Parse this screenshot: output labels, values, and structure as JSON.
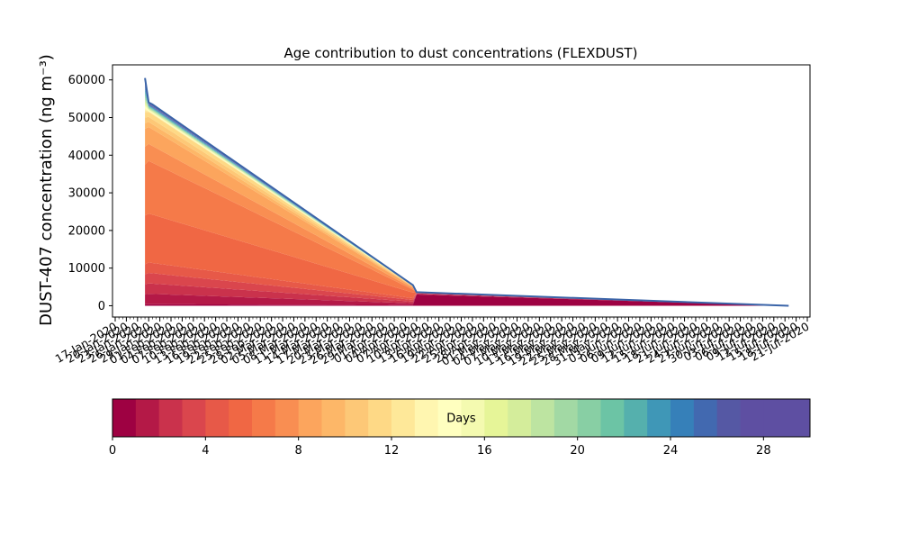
{
  "chart_data": [
    {
      "type": "area",
      "title": "Age contribution to dust concentrations (FLEXDUST)",
      "ylabel": "DUST-407 concentration (ng m⁻³)",
      "xlabel": "",
      "ylim": [
        -3000,
        64000
      ],
      "yticks": [
        0,
        10000,
        20000,
        30000,
        40000,
        50000,
        60000
      ],
      "ytick_labels": [
        "0",
        "10000",
        "20000",
        "30000",
        "40000",
        "50000",
        "60000"
      ],
      "x_range": [
        "2020-01-17",
        "2020-07-21"
      ],
      "x_tick_labels": [
        "17-Jan-2020",
        "20-Jan-2020",
        "23-Jan-2020",
        "26-Jan-2020",
        "29-Jan-2020",
        "01-Feb-2020",
        "04-Feb-2020",
        "07-Feb-2020",
        "10-Feb-2020",
        "13-Feb-2020",
        "16-Feb-2020",
        "19-Feb-2020",
        "22-Feb-2020",
        "25-Feb-2020",
        "28-Feb-2020",
        "02-Mar-2020",
        "05-Mar-2020",
        "08-Mar-2020",
        "11-Mar-2020",
        "14-Mar-2020",
        "17-Mar-2020",
        "20-Mar-2020",
        "23-Mar-2020",
        "26-Mar-2020",
        "29-Mar-2020",
        "01-Apr-2020",
        "04-Apr-2020",
        "07-Apr-2020",
        "10-Apr-2020",
        "13-Apr-2020",
        "16-Apr-2020",
        "19-Apr-2020",
        "22-Apr-2020",
        "25-Apr-2020",
        "28-Apr-2020",
        "01-May-2020",
        "04-May-2020",
        "07-May-2020",
        "10-May-2020",
        "13-May-2020",
        "16-May-2020",
        "19-May-2020",
        "22-May-2020",
        "25-May-2020",
        "28-May-2020",
        "31-May-2020",
        "03-Jun-2020",
        "06-Jun-2020",
        "09-Jun-2020",
        "12-Jun-2020",
        "15-Jun-2020",
        "18-Jun-2020",
        "21-Jun-2020",
        "24-Jun-2020",
        "27-Jun-2020",
        "30-Jun-2020",
        "03-Jul-2020",
        "06-Jul-2020",
        "09-Jul-2020",
        "12-Jul-2020",
        "15-Jul-2020",
        "18-Jul-2020",
        "21-Jul-2020"
      ],
      "stacked": true,
      "series_count": 30,
      "total": {
        "x": [
          "2020-01-25",
          "2020-01-26",
          "2020-01-27",
          "2020-04-06",
          "2020-04-07",
          "2020-07-16"
        ],
        "y": [
          60500,
          54000,
          53500,
          5500,
          3600,
          0
        ]
      },
      "cumulative_levels": [
        {
          "day": 1,
          "x": [
            "2020-01-25",
            "2020-04-06",
            "2020-04-07",
            "2020-07-16"
          ],
          "y": [
            400,
            200,
            3000,
            0
          ]
        },
        {
          "day": 5,
          "x": [
            "2020-01-25",
            "2020-01-26",
            "2020-04-06"
          ],
          "y": [
            11000,
            11500,
            2000
          ]
        },
        {
          "day": 6,
          "x": [
            "2020-01-25",
            "2020-01-26",
            "2020-04-06"
          ],
          "y": [
            24000,
            24500,
            3500
          ]
        },
        {
          "day": 7,
          "x": [
            "2020-01-25",
            "2020-01-26",
            "2020-04-06"
          ],
          "y": [
            37500,
            38500,
            4300
          ]
        },
        {
          "day": 9,
          "x": [
            "2020-01-25",
            "2020-01-26",
            "2020-04-06"
          ],
          "y": [
            47000,
            47500,
            5000
          ]
        },
        {
          "day": 12,
          "x": [
            "2020-01-25",
            "2020-01-26",
            "2020-04-06"
          ],
          "y": [
            51500,
            51500,
            5300
          ]
        }
      ],
      "colorbar": {
        "label": "Days",
        "min": 0,
        "max": 30,
        "ticks": [
          0,
          4,
          8,
          12,
          16,
          20,
          24,
          28
        ],
        "tick_labels": [
          "0",
          "4",
          "8",
          "12",
          "16",
          "20",
          "24",
          "28"
        ],
        "colors": [
          "#9e0142",
          "#b41947",
          "#ca324c",
          "#da464d",
          "#e75948",
          "#f06744",
          "#f57a49",
          "#f98e52",
          "#fca55d",
          "#fdb768",
          "#fdc877",
          "#fed986",
          "#fee899",
          "#fff6b0",
          "#ffffbf",
          "#f4fab0",
          "#e6f598",
          "#d4ed9b",
          "#bde4a1",
          "#a2d9a4",
          "#88cfa4",
          "#6cc4a5",
          "#55b0ad",
          "#3f97b7",
          "#3680b9",
          "#4269b0",
          "#5558a4",
          "#5e4fa2",
          "#5e4fa2",
          "#5e4fa2"
        ]
      },
      "colors": {
        "total_line": "#3a64a8"
      }
    }
  ]
}
